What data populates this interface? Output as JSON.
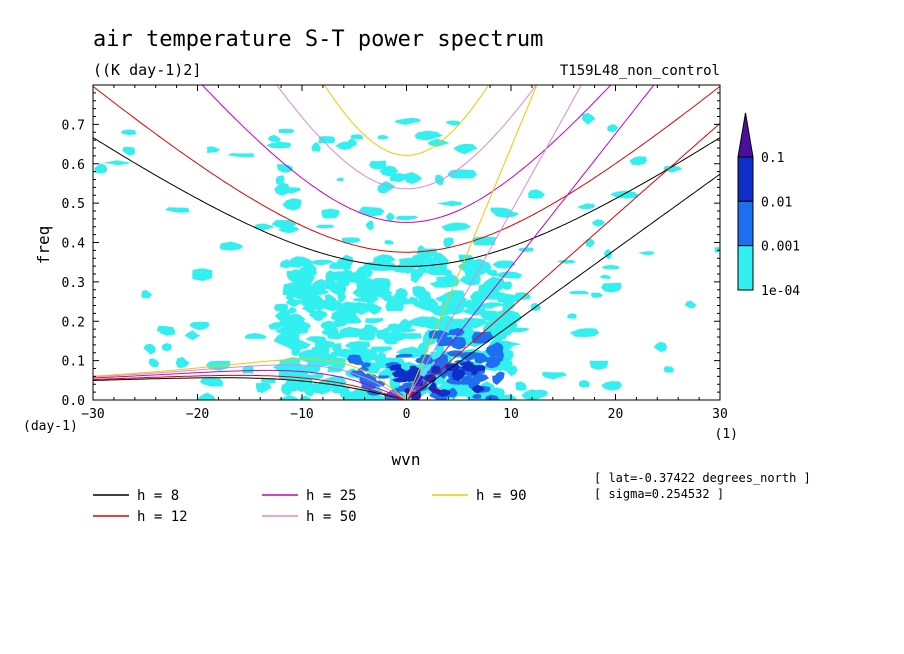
{
  "chart_data": {
    "type": "heatmap",
    "title": "air temperature S-T power spectrum",
    "units": "((K day-1)2]",
    "run": "T159L48_non_control",
    "xlabel": "wvn",
    "ylabel": "freq",
    "x_unit": "(1)",
    "y_unit": "(day-1)",
    "xlim": [
      -30,
      30
    ],
    "ylim": [
      0,
      0.8
    ],
    "xticks": [
      -30,
      -20,
      -10,
      0,
      10,
      20,
      30
    ],
    "yticks": [
      0.0,
      0.1,
      0.2,
      0.3,
      0.4,
      0.5,
      0.6,
      0.7
    ],
    "colorbar": {
      "levels": [
        "0.1",
        "0.01",
        "0.001",
        "1e-04"
      ],
      "colors": [
        "#4b0fa0",
        "#0f2ec8",
        "#1e6ff0",
        "#33f0f0"
      ]
    },
    "dispersion_curves": [
      {
        "name": "h = 8",
        "equiv_depth": 8,
        "color": "#000000"
      },
      {
        "name": "h = 12",
        "equiv_depth": 12,
        "color": "#e00000"
      },
      {
        "name": "h = 25",
        "equiv_depth": 25,
        "color": "#c400c4"
      },
      {
        "name": "h = 50",
        "equiv_depth": 50,
        "color": "#d98ad9"
      },
      {
        "name": "h = 90",
        "equiv_depth": 90,
        "color": "#f0c800"
      }
    ],
    "annotations": [
      "[ lat=-0.37422 degrees_north ]",
      "[ sigma=0.254532 ]"
    ]
  }
}
